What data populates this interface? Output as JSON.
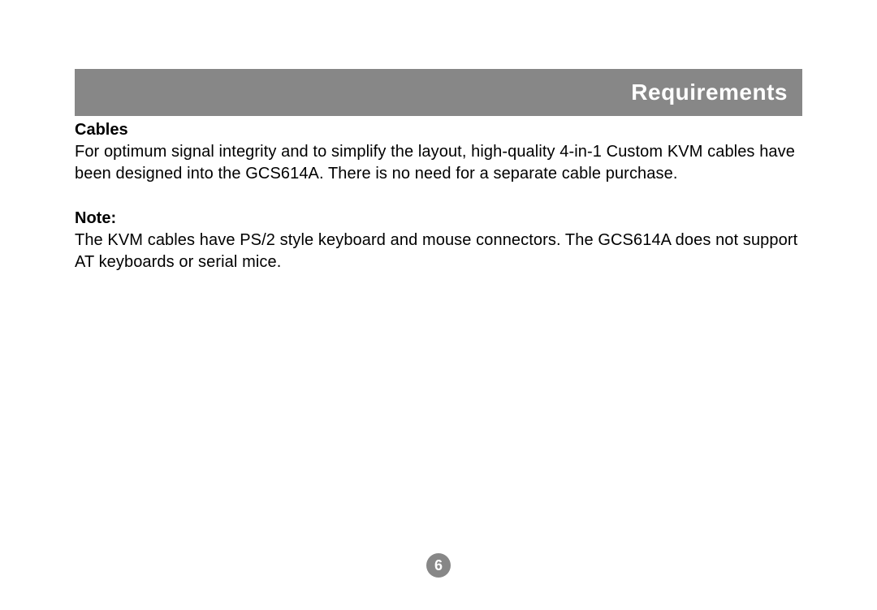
{
  "header": {
    "title": "Requirements",
    "bar_color": "#878787",
    "title_color": "#ffffff",
    "title_fontsize": 28
  },
  "sections": {
    "cables": {
      "heading": "Cables",
      "body": "For optimum signal integrity and to simplify the layout, high-quality 4-in-1 Custom KVM cables have been designed into the GCS614A. There is no need for a separate cable purchase."
    },
    "note": {
      "heading": "Note:",
      "body": "The KVM cables have PS/2 style keyboard and mouse connectors. The  GCS614A does not support AT keyboards or serial mice."
    }
  },
  "page_number": {
    "value": "6",
    "circle_color": "#878787",
    "text_color": "#ffffff"
  },
  "style": {
    "background_color": "#ffffff",
    "text_color": "#000000",
    "body_fontsize": 20,
    "heading_fontsize": 20,
    "heading_weight": 700
  }
}
